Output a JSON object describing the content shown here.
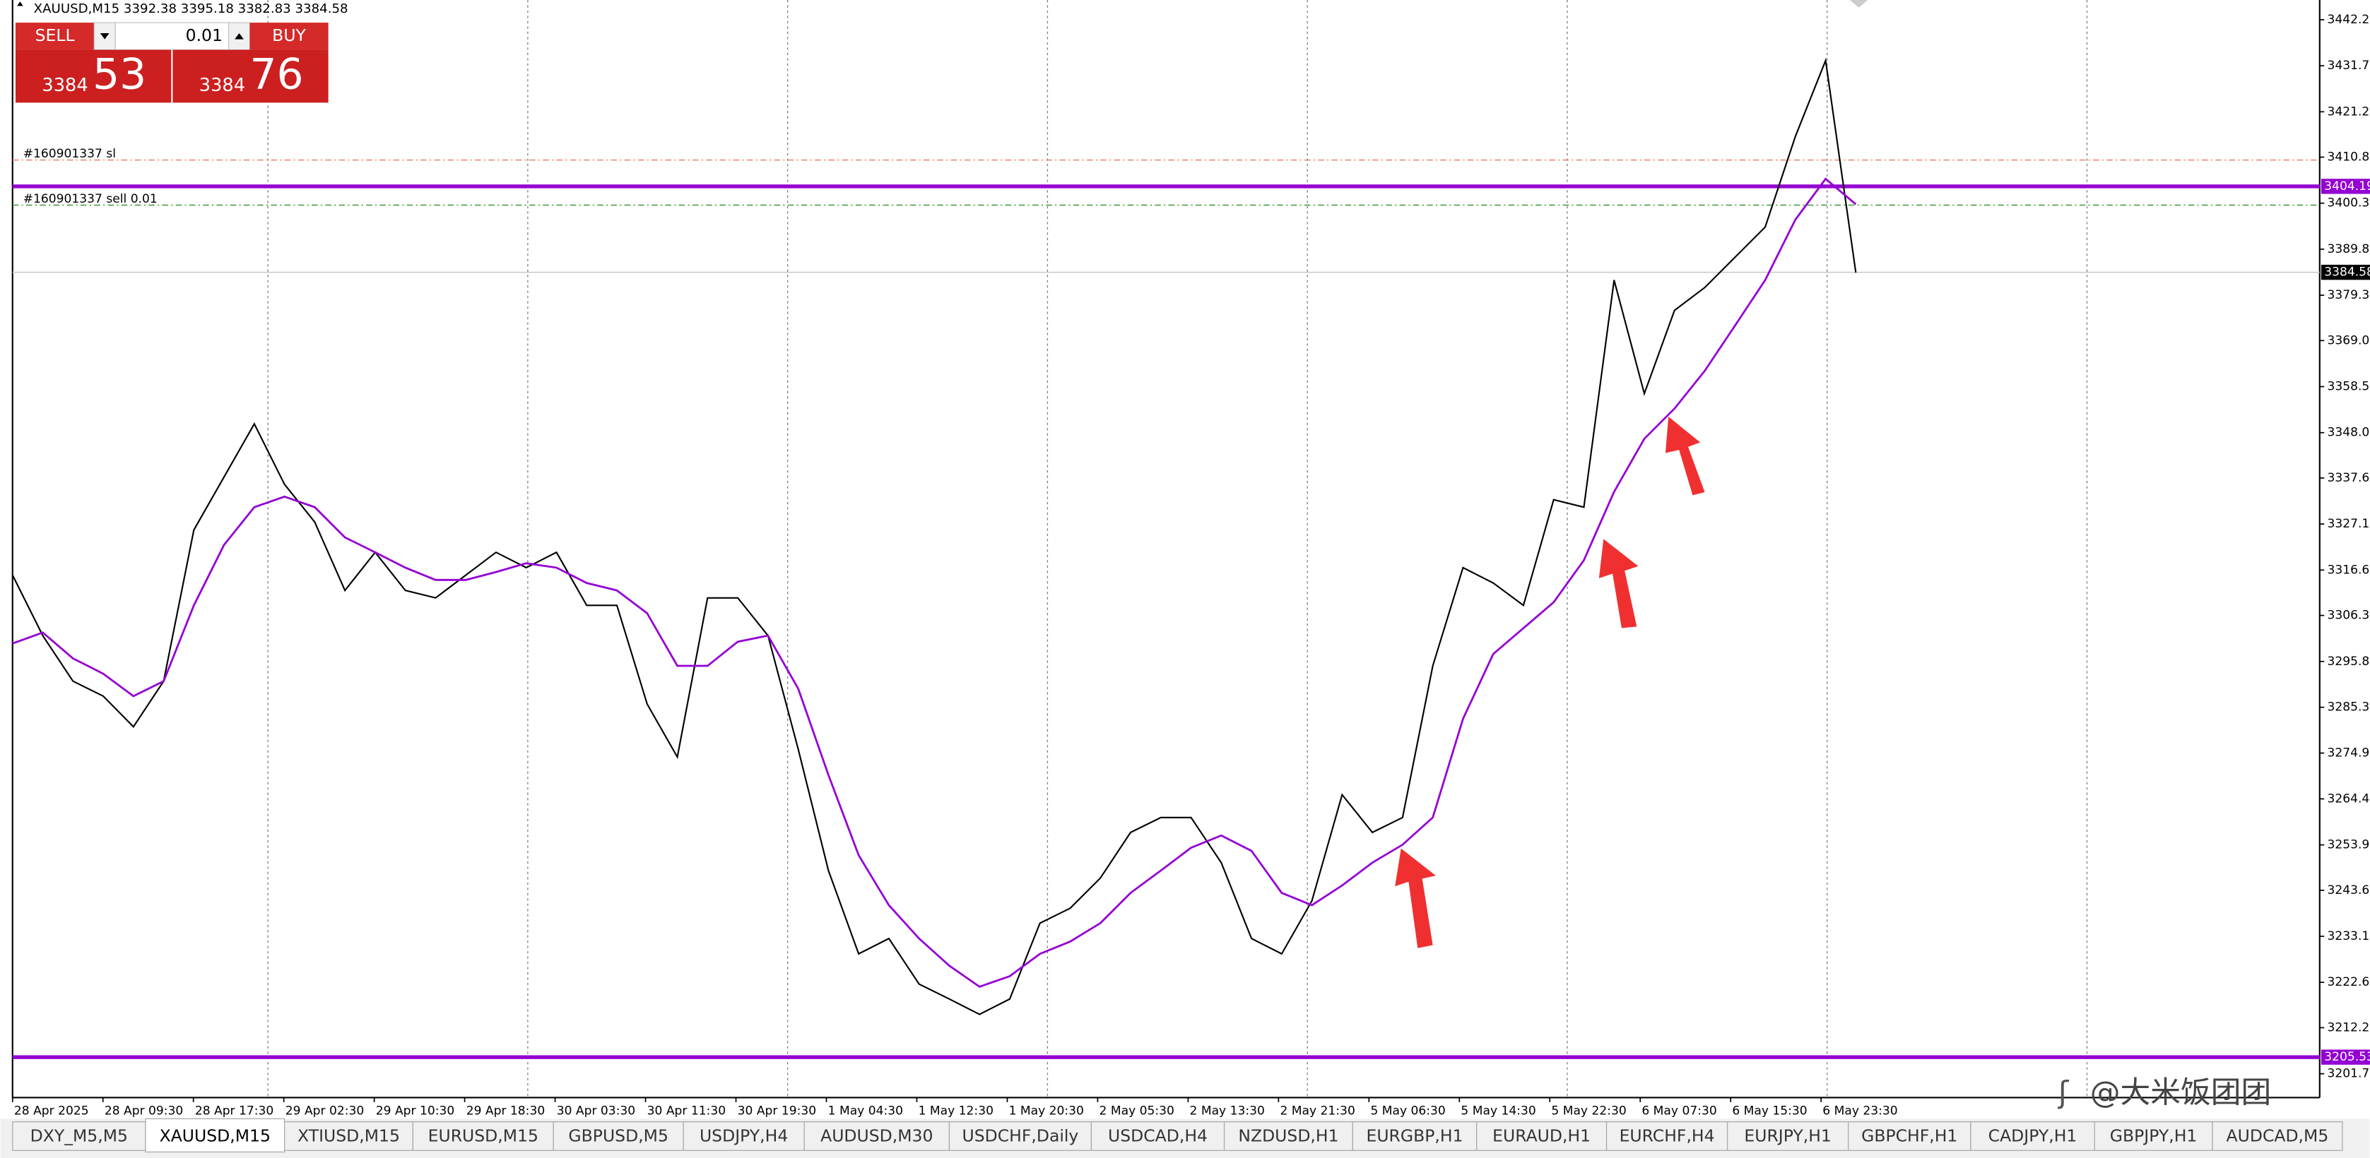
{
  "header": {
    "symbol_info": "XAUUSD,M15  3392.38 3395.18 3382.83 3384.58"
  },
  "trade_panel": {
    "sell_label": "SELL",
    "buy_label": "BUY",
    "lot": "0.01",
    "sell_price_small": "3384",
    "sell_price_big": "53",
    "buy_price_small": "3384",
    "buy_price_big": "76"
  },
  "chart_data": {
    "type": "line",
    "ylim": [
      3196.3,
      3446.7
    ],
    "yticks": [
      {
        "value": 3442.2,
        "label": "3442.20"
      },
      {
        "value": 3431.7,
        "label": "3431.70"
      },
      {
        "value": 3421.2,
        "label": "3421.20"
      },
      3410.85,
      3400.35,
      3389.85,
      3379.35,
      {
        "value": 3369.0,
        "label": "3369.00"
      },
      {
        "value": 3358.5,
        "label": "3358.50"
      },
      {
        "value": 3348.0,
        "label": "3348.00"
      },
      3337.65,
      3327.15,
      3316.65,
      {
        "value": 3306.3,
        "label": "3306.30"
      },
      {
        "value": 3295.8,
        "label": "3295.80"
      },
      3285.35,
      {
        "value": 3274.9,
        "label": "3274.90"
      },
      3264.45,
      3253.95,
      {
        "value": 3243.6,
        "label": "3243.60"
      },
      {
        "value": 3233.1,
        "label": "3233.10"
      },
      {
        "value": 3222.6,
        "label": "3222.60"
      },
      3212.25,
      3201.75
    ],
    "x_labels": [
      "28 Apr 2025",
      "28 Apr 09:30",
      "28 Apr 17:30",
      "29 Apr 02:30",
      "29 Apr 10:30",
      "29 Apr 18:30",
      "30 Apr 03:30",
      "30 Apr 11:30",
      "30 Apr 19:30",
      "1 May 04:30",
      "1 May 12:30",
      "1 May 20:30",
      "2 May 05:30",
      "2 May 13:30",
      "2 May 21:30",
      "5 May 06:30",
      "5 May 14:30",
      "5 May 22:30",
      "6 May 07:30",
      "6 May 15:30",
      "6 May 23:30"
    ],
    "series": [
      {
        "color": "#000000",
        "values": [
          3315.5,
          3301.7,
          3291.3,
          3287.9,
          3280.9,
          3291.3,
          3325.8,
          3337.9,
          3350.0,
          3336.2,
          3327.6,
          3312.0,
          3320.7,
          3312.0,
          3310.3,
          3315.5,
          3320.7,
          3317.2,
          3320.7,
          3308.6,
          3308.6,
          3286.1,
          3274.0,
          3310.3,
          3310.3,
          3301.7,
          3275.8,
          3248.1,
          3229.1,
          3232.6,
          3222.2,
          3218.8,
          3215.3,
          3218.8,
          3236.1,
          3239.5,
          3246.4,
          3256.8,
          3260.2,
          3260.2,
          3249.9,
          3232.6,
          3229.1,
          3241.2,
          3265.4,
          3256.8,
          3260.2,
          3294.8,
          3317.2,
          3313.7,
          3308.6,
          3332.7,
          3331.0,
          3382.8,
          3356.9,
          3375.9,
          3381.1,
          3388.0,
          3394.9,
          3415.6,
          3432.9,
          3384.5
        ]
      },
      {
        "color": "#9400d3",
        "values": [
          3299.9,
          3302.4,
          3296.5,
          3293.0,
          3287.9,
          3291.3,
          3308.6,
          3322.4,
          3331.0,
          3333.4,
          3331.0,
          3324.1,
          3320.7,
          3317.2,
          3314.4,
          3314.4,
          3316.2,
          3318.2,
          3317.2,
          3313.7,
          3312.0,
          3306.8,
          3294.8,
          3294.8,
          3300.3,
          3301.7,
          3289.6,
          3269.9,
          3251.6,
          3240.2,
          3232.6,
          3226.4,
          3221.6,
          3224.0,
          3229.1,
          3231.9,
          3236.1,
          3243.0,
          3248.1,
          3253.3,
          3256.1,
          3252.6,
          3243.0,
          3240.2,
          3244.7,
          3249.9,
          3254.0,
          3260.2,
          3282.7,
          3297.5,
          3303.4,
          3309.3,
          3318.9,
          3334.5,
          3346.6,
          3353.5,
          3362.1,
          3372.4,
          3382.8,
          3396.6,
          3405.9,
          3400.1
        ]
      }
    ],
    "levels": [
      {
        "value": 3404.19,
        "label": "3404.19",
        "color": "#9400d3"
      },
      {
        "value": 3205.53,
        "label": "3205.53",
        "color": "#9400d3"
      },
      {
        "value": 3384.58,
        "label": "3384.58",
        "color": "#000000"
      }
    ],
    "orders": [
      {
        "label": "#160901337 sl",
        "value": 3410.2,
        "color": "#e8826a"
      },
      {
        "label": "#160901337 sell 0.01",
        "value": 3399.9,
        "color": "#3a9a3a"
      }
    ]
  },
  "tabs": {
    "items": [
      "DXY_M5,M5",
      "XAUUSD,M15",
      "XTIUSD,M15",
      "EURUSD,M15",
      "GBPUSD,M5",
      "USDJPY,H4",
      "AUDUSD,M30",
      "USDCHF,Daily",
      "USDCAD,H4",
      "NZDUSD,H1",
      "EURGBP,H1",
      "EURAUD,H1",
      "EURCHF,H4",
      "EURJPY,H1",
      "GBPCHF,H1",
      "CADJPY,H1",
      "GBPJPY,H1",
      "AUDCAD,M5"
    ],
    "active": 1
  },
  "watermark": "@大米饭团团"
}
